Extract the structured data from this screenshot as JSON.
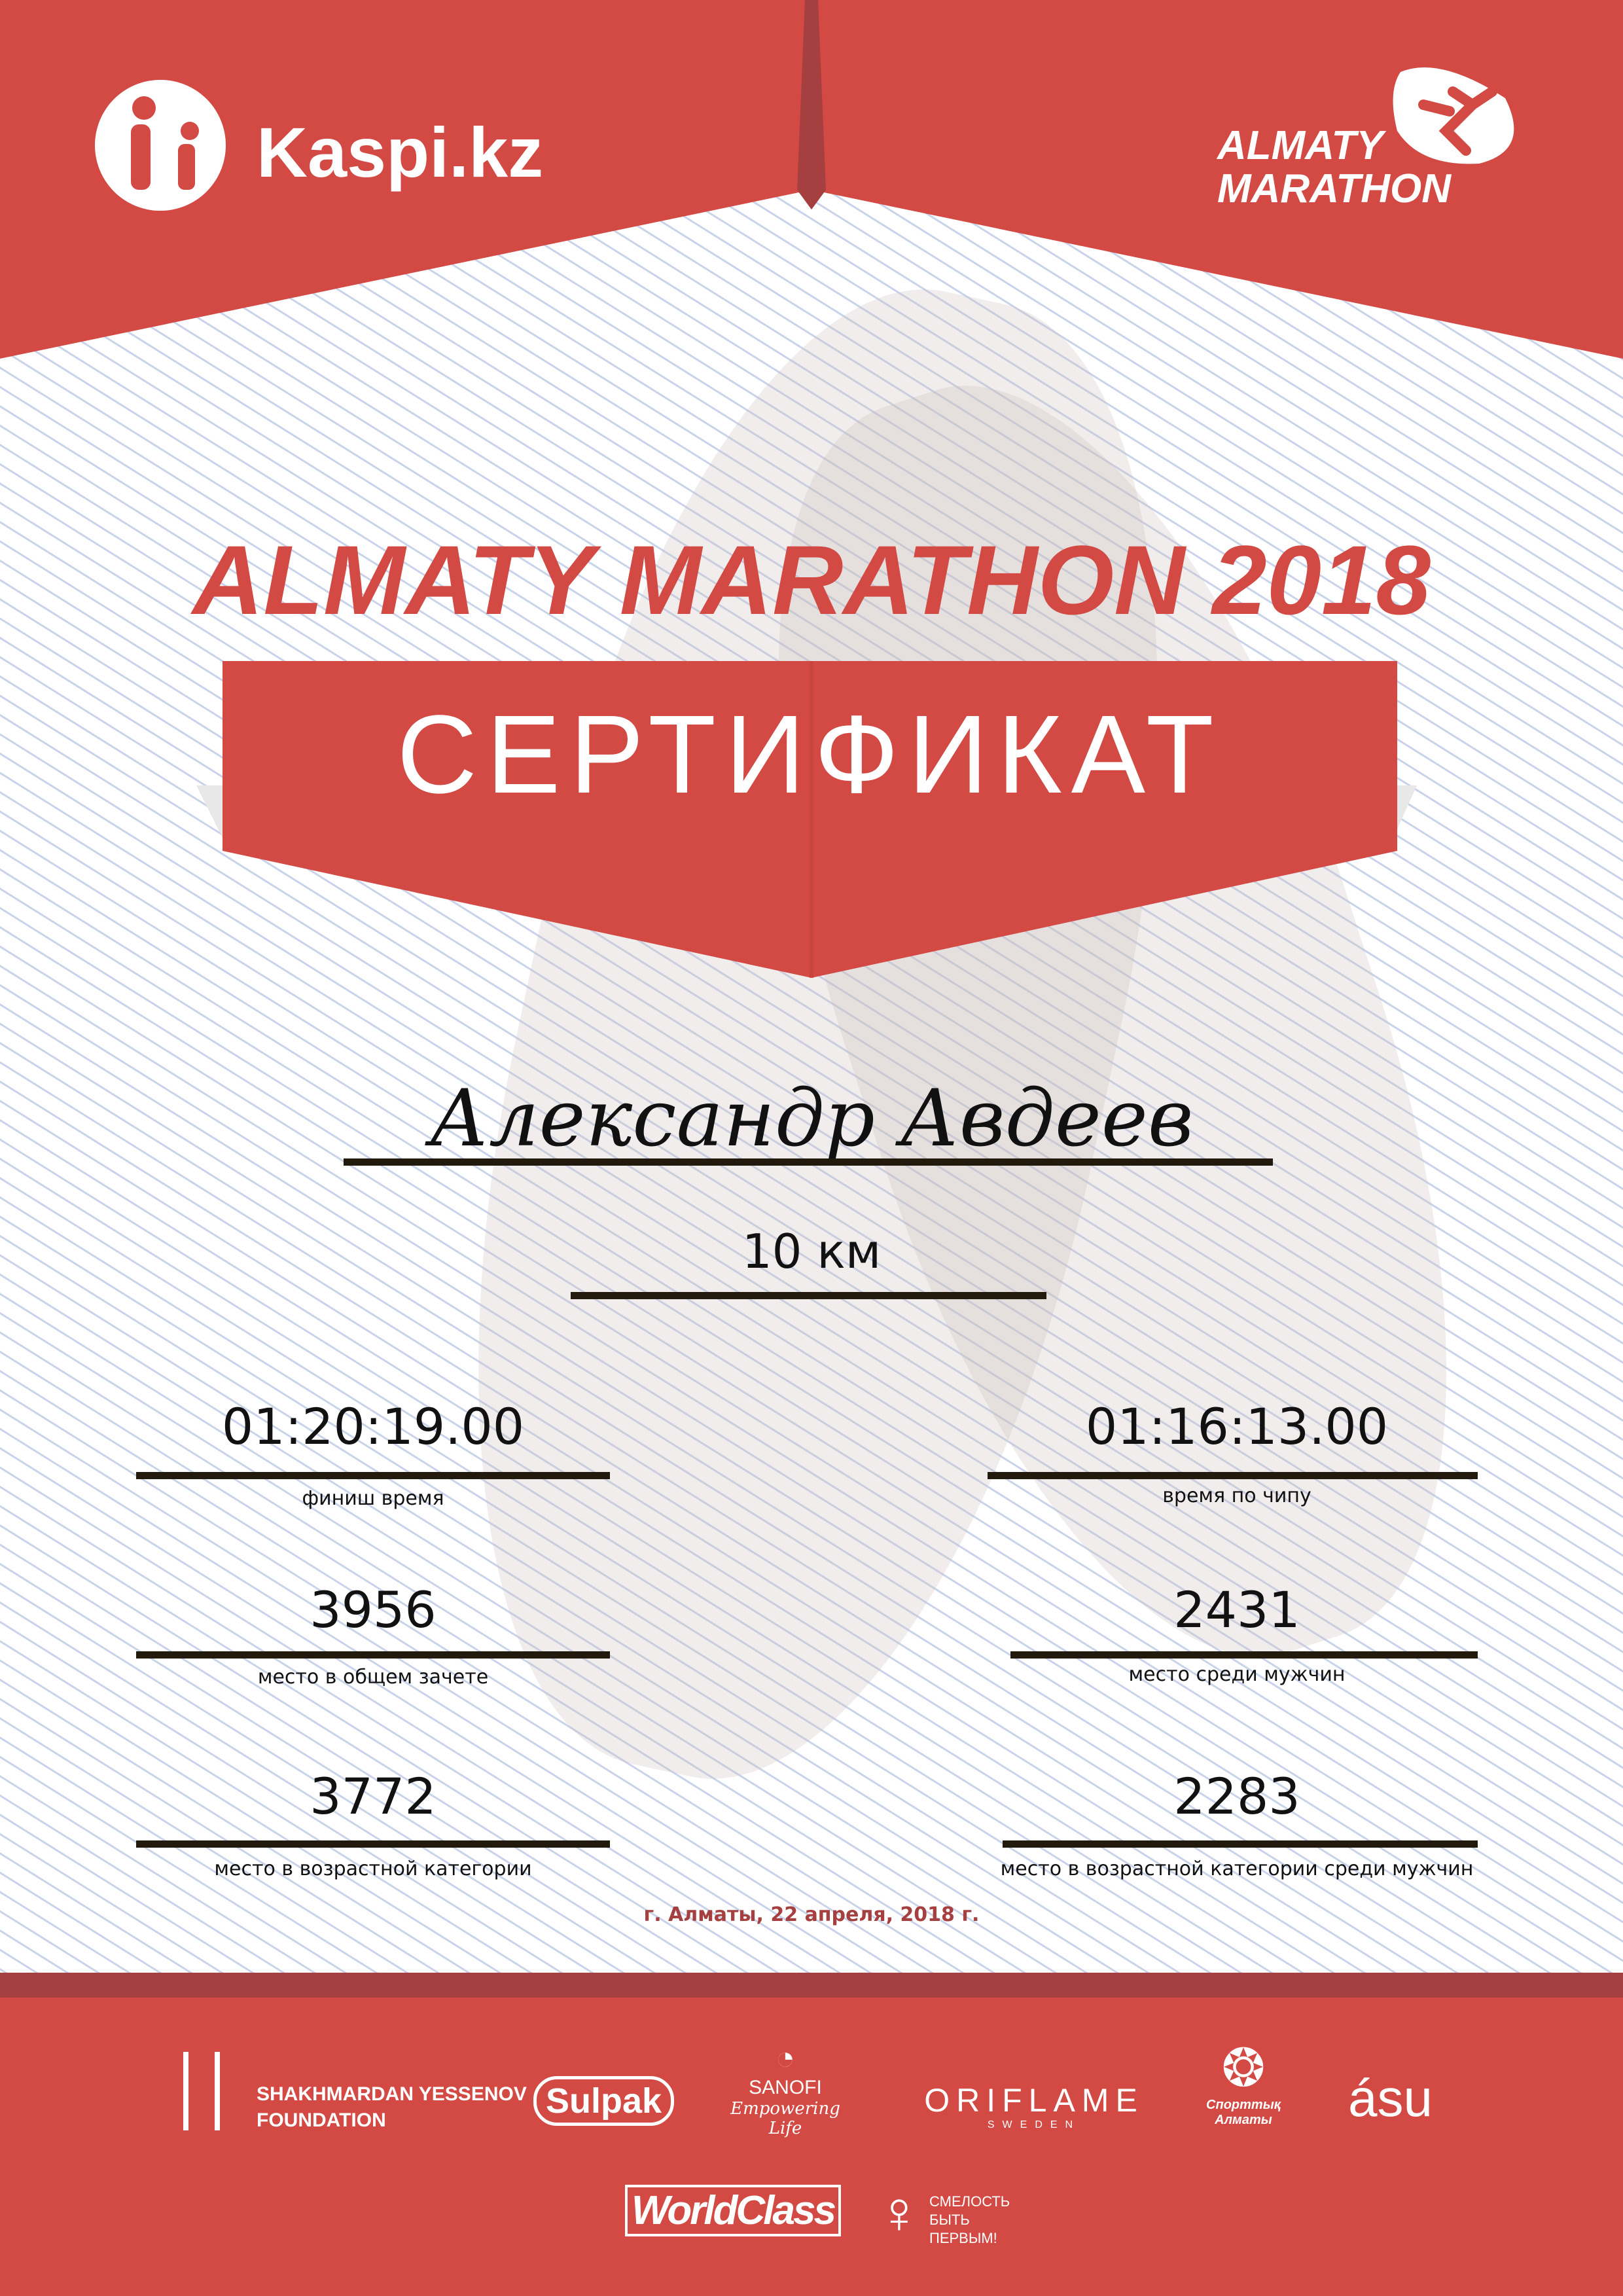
{
  "colors": {
    "brand_red": "#d34a44",
    "dark_red": "#a63f3f",
    "line_blue": "#c9d3ea",
    "text": "#111111"
  },
  "header": {
    "left_logo": "Kaspi.kz",
    "right_logo_line1": "ALMATY",
    "right_logo_line2": "MARATHON"
  },
  "title": "ALMATY MARATHON 2018",
  "banner": "СЕРТИФИКАТ",
  "participant": {
    "name": "Александр Авдеев",
    "distance": "10 км"
  },
  "stats": [
    {
      "value": "01:20:19.00",
      "label": "финиш время"
    },
    {
      "value": "01:16:13.00",
      "label": "время по чипу"
    },
    {
      "value": "3956",
      "label": "место в общем зачете"
    },
    {
      "value": "2431",
      "label": "место среди мужчин"
    },
    {
      "value": "3772",
      "label": "место в возрастной категории"
    },
    {
      "value": "2283",
      "label": "место в возрастной категории среди мужчин"
    }
  ],
  "date": "г. Алматы, 22 апреля, 2018 г.",
  "sponsors": {
    "yessenov_1": "SHAKHMARDAN YESSENOV",
    "yessenov_2": "FOUNDATION",
    "sulpak": "Sulpak",
    "sanofi": "SANOFI",
    "sanofi_tag": "Empowering Life",
    "oriflame": "ORIFLAME",
    "oriflame_sub": "SWEDEN",
    "sport_almaty": "Спорттық Алматы",
    "asu": "ásu",
    "worldclass": "WorldClass",
    "fund_1": "СМЕЛОСТЬ",
    "fund_2": "БЫТЬ",
    "fund_3": "ПЕРВЫМ!"
  }
}
